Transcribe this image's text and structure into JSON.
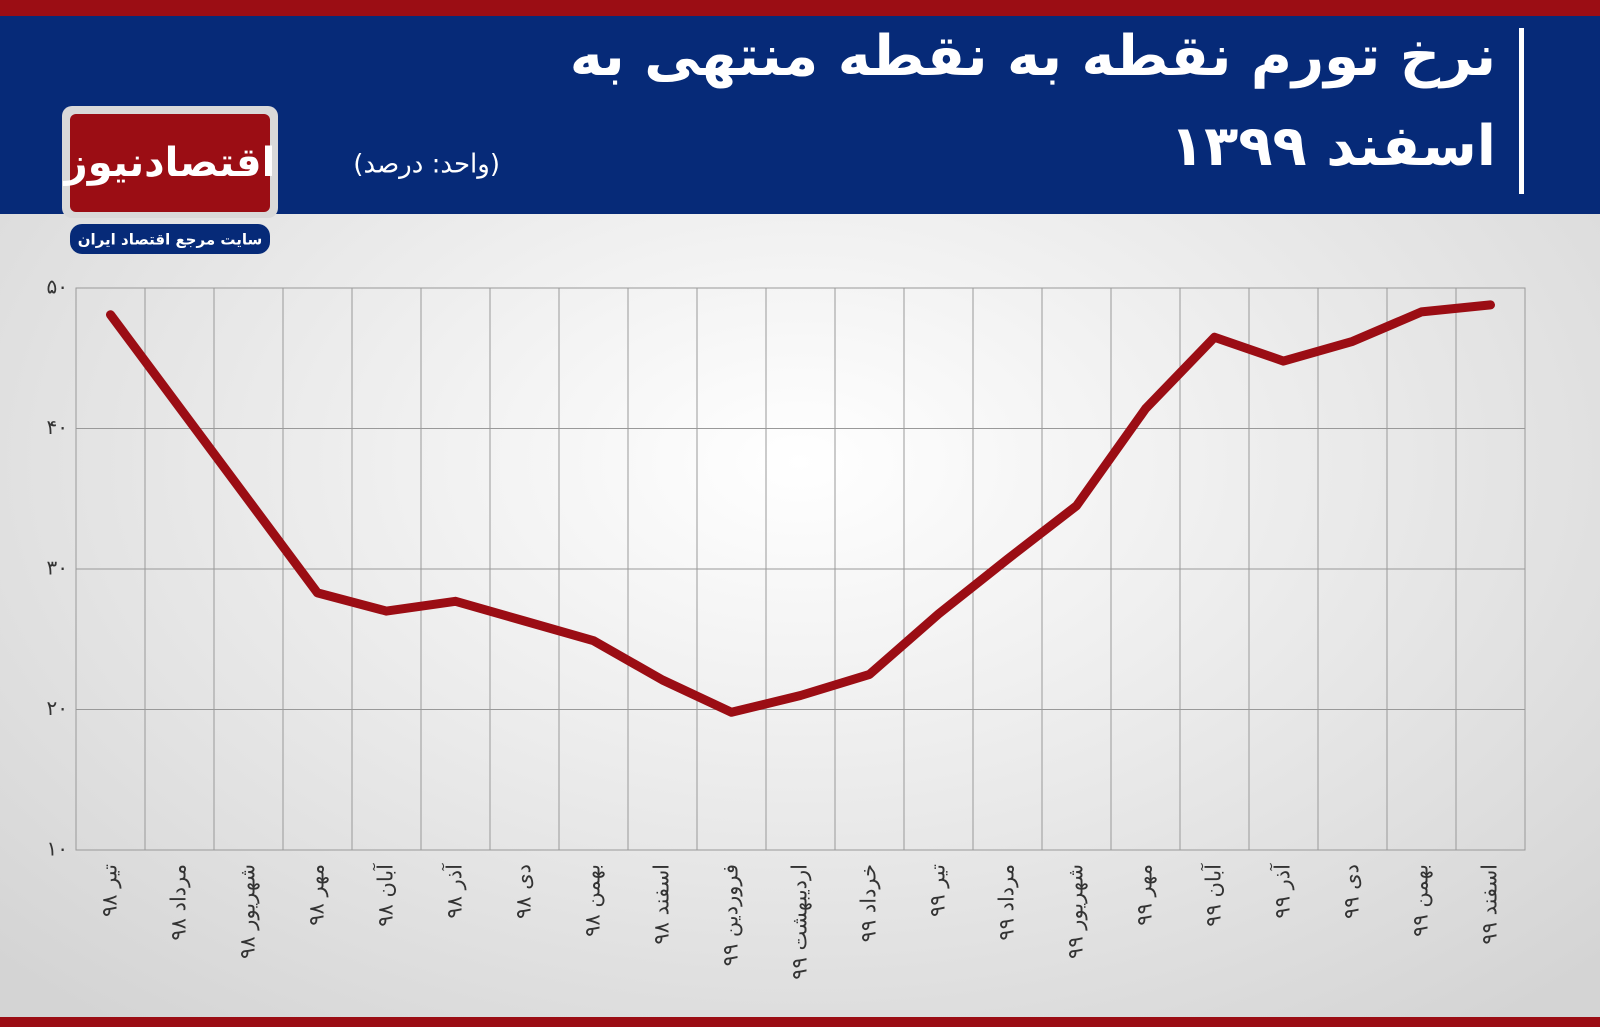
{
  "chart_data": {
    "type": "line",
    "title": [
      "نرخ تورم نقطه به نقطه منتهی به",
      "اسفند ۱۳۹۹"
    ],
    "subtitle": "(واحد: درصد)",
    "logo": {
      "name": "اقتصادنیوز",
      "tagline": "سایت مرجع اقتصاد ایران"
    },
    "categories": [
      "تیر ۹۸",
      "مرداد ۹۸",
      "شهریور ۹۸",
      "مهر ۹۸",
      "آبان ۹۸",
      "آذر ۹۸",
      "دی ۹۸",
      "بهمن ۹۸",
      "اسفند ۹۸",
      "فروردین ۹۹",
      "اردیبهشت ۹۹",
      "خرداد ۹۹",
      "تیر ۹۹",
      "مرداد ۹۹",
      "شهریور ۹۹",
      "مهر ۹۹",
      "آبان ۹۹",
      "آذر ۹۹",
      "دی ۹۹",
      "بهمن ۹۹",
      "اسفند ۹۹"
    ],
    "values": [
      48.1,
      41.5,
      34.9,
      28.3,
      27.0,
      27.7,
      26.3,
      24.9,
      22.1,
      19.8,
      21.0,
      22.5,
      26.8,
      30.7,
      34.5,
      41.4,
      46.5,
      44.8,
      46.2,
      48.3,
      48.8
    ],
    "color": "#9b0d14",
    "ylim": [
      10,
      50
    ],
    "yticks": [
      {
        "value": 10,
        "label": "۱۰"
      },
      {
        "value": 20,
        "label": "۲۰"
      },
      {
        "value": 30,
        "label": "۳۰"
      },
      {
        "value": 40,
        "label": "۴۰"
      },
      {
        "value": 50,
        "label": "۵۰"
      }
    ],
    "grid": true
  }
}
